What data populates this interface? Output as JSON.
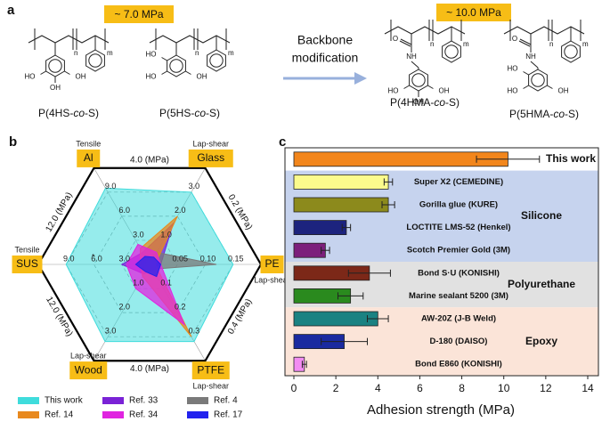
{
  "panel_labels": [
    "a",
    "b",
    "c"
  ],
  "scheme": {
    "left_strength": "~ 7.0 MPa",
    "right_strength": "~ 10.0 MPa",
    "arrow_text": [
      "Backbone",
      "modification"
    ],
    "molecules": [
      {
        "name": [
          "P(4HS-",
          "co",
          "-S)"
        ],
        "kind": "HS",
        "atoms": [
          "n",
          "m",
          "HO",
          "OH",
          "OH"
        ]
      },
      {
        "name": [
          "P(5HS-",
          "co",
          "-S)"
        ],
        "kind": "HS",
        "atoms": [
          "n",
          "m",
          "HO",
          "HO",
          "OH"
        ]
      },
      {
        "name": [
          "P(4HMA-",
          "co",
          "-S)"
        ],
        "kind": "HMA",
        "atoms": [
          "O",
          "NH",
          "n",
          "m",
          "HO",
          "OH",
          "OH"
        ]
      },
      {
        "name": [
          "P(5HMA-",
          "co",
          "-S)"
        ],
        "kind": "HMA",
        "atoms": [
          "O",
          "NH",
          "n",
          "m",
          "HO",
          "HO",
          "OH"
        ]
      }
    ]
  },
  "chart_data": [
    {
      "type": "radar",
      "annotation": "*",
      "axes": [
        {
          "name": "Al",
          "test": "Tensile",
          "max": {
            "value": 12,
            "label": "12.0 (MPa)"
          },
          "ticks": [
            {
              "value": 3,
              "label": "3.0"
            },
            {
              "value": 6,
              "label": "6.0"
            },
            {
              "value": 9,
              "label": "9.0"
            }
          ]
        },
        {
          "name": "Glass",
          "test": "Lap-shear",
          "max": {
            "value": 4,
            "label": "4.0 (MPa)"
          },
          "ticks": [
            {
              "value": 1,
              "label": "1.0"
            },
            {
              "value": 2,
              "label": "2.0"
            },
            {
              "value": 3,
              "label": "3.0"
            }
          ]
        },
        {
          "name": "PE",
          "test": "Lap-shear",
          "max": {
            "value": 0.2,
            "label": "0.2 (MPa)"
          },
          "ticks": [
            0.05,
            {
              "value": 0.1,
              "label": "0.10"
            },
            0.15
          ]
        },
        {
          "name": "PTFE",
          "test": "Lap-shear",
          "max": {
            "value": 0.4,
            "label": "0.4 (MPa)"
          },
          "ticks": [
            0.1,
            0.2,
            0.3
          ]
        },
        {
          "name": "Wood",
          "test": "Lap-shear",
          "max": {
            "value": 4,
            "label": "4.0 (MPa)"
          },
          "ticks": [
            {
              "value": 1,
              "label": "1.0"
            },
            {
              "value": 2,
              "label": "2.0"
            },
            {
              "value": 3,
              "label": "3.0"
            }
          ]
        },
        {
          "name": "SUS",
          "test": "Tensile",
          "max": {
            "value": 12,
            "label": "12.0 (MPa)"
          },
          "ticks": [
            {
              "value": 3,
              "label": "3.0"
            },
            {
              "value": 6,
              "label": "6.0"
            },
            {
              "value": 9,
              "label": "9.0"
            }
          ]
        }
      ],
      "series": [
        {
          "name": "This work",
          "color": "#3fdcdc",
          "values": [
            9.5,
            3.0,
            0.15,
            0.32,
            3.2,
            9.0
          ]
        },
        {
          "name": "Ref. 33",
          "color": "#7a22d6",
          "values": [
            1.5,
            1.7,
            0.02,
            0.02,
            0.4,
            3.0
          ]
        },
        {
          "name": "Ref. 4",
          "color": "#7a7a7a",
          "values": [
            0.5,
            0.5,
            0.12,
            0.02,
            0.3,
            0.5
          ]
        },
        {
          "name": "Ref. 14",
          "color": "#e8891e",
          "values": [
            2.0,
            2.0,
            0.01,
            0.3,
            0.5,
            1.0
          ]
        },
        {
          "name": "Ref. 34",
          "color": "#e024e0",
          "values": [
            2.5,
            0.5,
            0.02,
            0.25,
            1.0,
            2.5
          ]
        },
        {
          "name": "Ref. 17",
          "color": "#2222ee",
          "values": [
            1.0,
            0.3,
            0.02,
            0.05,
            0.3,
            1.5
          ]
        }
      ]
    },
    {
      "type": "barh",
      "xlabel": "Adhesion strength (MPa)",
      "categories": [
        "This work",
        "Super X2 (CEMEDINE)",
        "Gorilla glue (KURE)",
        "LOCTITE LMS-52 (Henkel)",
        "Scotch Premier Gold (3M)",
        "Bond S·U (KONISHI)",
        "Marine sealant 5200 (3M)",
        "AW-20Z (J-B Weld)",
        "D-180 (DAISO)",
        "Bond E860 (KONISHI)"
      ],
      "values": [
        10.2,
        4.5,
        4.5,
        2.5,
        1.5,
        3.6,
        2.7,
        4.0,
        2.4,
        0.5
      ],
      "errors": [
        1.5,
        0.2,
        0.3,
        0.2,
        0.2,
        1.0,
        0.6,
        0.5,
        1.1,
        0.1
      ],
      "colors": [
        "#f2861c",
        "#fbfb8c",
        "#8c8a1c",
        "#1c237e",
        "#7c1f7c",
        "#7c2818",
        "#2a8a1e",
        "#1a8282",
        "#1a2aa0",
        "#f28cf2"
      ],
      "groups": [
        {
          "name": "Silicone",
          "color": "#c6d3ee",
          "categories": [
            "Super X2 (CEMEDINE)",
            "Gorilla glue (KURE)",
            "LOCTITE LMS-52 (Henkel)",
            "Scotch Premier Gold (3M)"
          ]
        },
        {
          "name": "Polyurethane",
          "color": "#e1e1e1",
          "categories": [
            "Bond S·U (KONISHI)",
            "Marine sealant 5200 (3M)"
          ]
        },
        {
          "name": "Epoxy",
          "color": "#fbe4d8",
          "categories": [
            "AW-20Z (J-B Weld)",
            "D-180 (DAISO)",
            "Bond E860 (KONISHI)"
          ]
        }
      ],
      "xlim": [
        0,
        14
      ],
      "xticks": [
        0,
        2,
        4,
        6,
        8,
        10,
        12,
        14
      ]
    }
  ]
}
